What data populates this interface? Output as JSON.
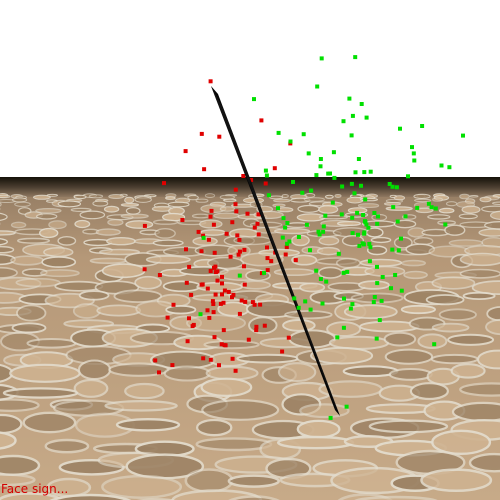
{
  "status": {
    "text": "Face sign..."
  },
  "colors": {
    "sky": "#ffffff",
    "horizon_band": "#141109",
    "ground_base": "#b89a7a",
    "stone_light": "#cfb391",
    "stone_dark": "#9c8264",
    "crack": "#e3dccd",
    "plane": "#050505",
    "red_points": "#e00000",
    "green_points": "#00e000"
  },
  "scene": {
    "ground": {
      "texture": "cracked-stone"
    },
    "separating_plane": {
      "shape": "thin-dark-plane"
    },
    "points": {
      "red_count": 110,
      "green_count": 130
    }
  }
}
